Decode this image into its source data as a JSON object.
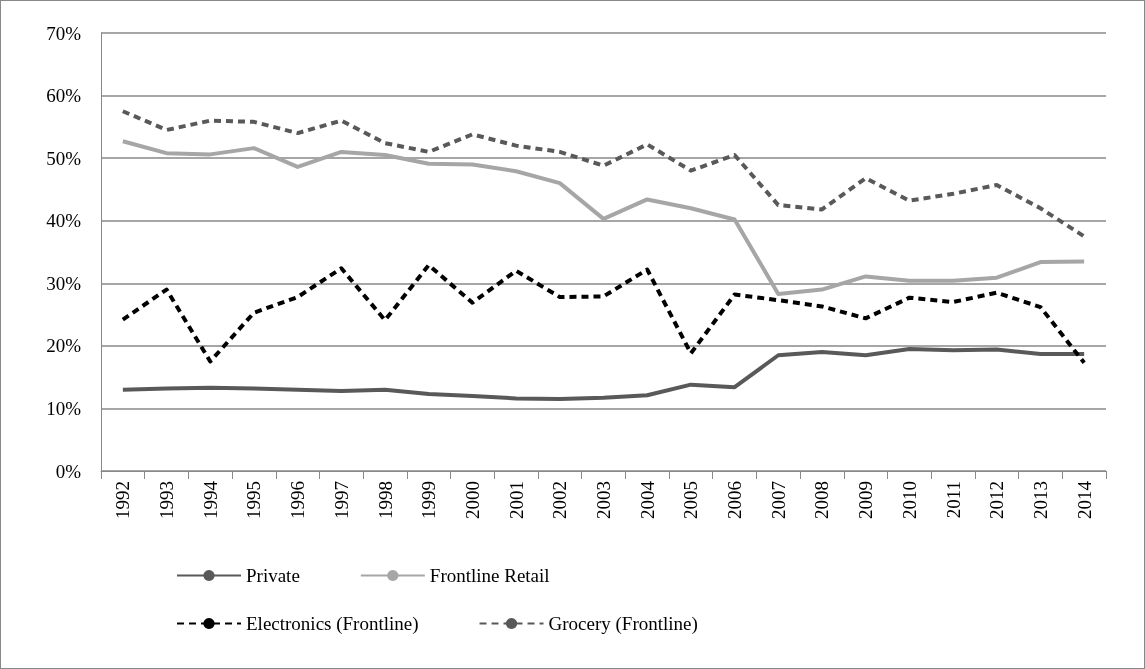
{
  "chart_data": {
    "type": "line",
    "categories": [
      "1992",
      "1993",
      "1994",
      "1995",
      "1996",
      "1997",
      "1998",
      "1999",
      "2000",
      "2001",
      "2002",
      "2003",
      "2004",
      "2005",
      "2006",
      "2007",
      "2008",
      "2009",
      "2010",
      "2011",
      "2012",
      "2013",
      "2014"
    ],
    "series": [
      {
        "name": "Private",
        "color": "#595959",
        "line_style": "solid",
        "values": [
          13,
          13.2,
          13.3,
          13.2,
          13,
          12.8,
          13,
          12.3,
          12,
          11.6,
          11.5,
          11.7,
          12.1,
          13.8,
          13.4,
          18.5,
          19,
          18.5,
          19.5,
          19.3,
          19.4,
          18.7,
          18.7
        ]
      },
      {
        "name": "Frontline Retail",
        "color": "#a6a6a6",
        "line_style": "solid",
        "values": [
          52.7,
          50.8,
          50.6,
          51.6,
          48.6,
          51,
          50.5,
          49.1,
          49,
          47.9,
          46,
          40.3,
          43.4,
          42,
          40.2,
          28.3,
          29,
          31.1,
          30.4,
          30.4,
          30.9,
          33.4,
          33.5
        ]
      },
      {
        "name": "Electronics (Frontline)",
        "color": "#000000",
        "line_style": "dashed",
        "values": [
          24.2,
          29,
          17.5,
          25.3,
          27.8,
          32.4,
          24.1,
          32.9,
          26.9,
          32,
          27.8,
          27.9,
          32.2,
          18.8,
          28.2,
          27.3,
          26.3,
          24.4,
          27.7,
          27,
          28.5,
          26.2,
          17.3
        ]
      },
      {
        "name": "Grocery (Frontline)",
        "color": "#595959",
        "line_style": "dashed",
        "values": [
          57.5,
          54.5,
          56,
          55.8,
          54,
          56,
          52.4,
          51,
          53.8,
          52,
          51,
          48.8,
          52.2,
          48,
          50.5,
          42.5,
          41.8,
          46.8,
          43.2,
          44.3,
          45.7,
          42,
          37.5
        ]
      }
    ],
    "ylim": [
      0,
      70
    ],
    "yticks": [
      {
        "value": 0,
        "label": "0%"
      },
      {
        "value": 10,
        "label": "10%"
      },
      {
        "value": 20,
        "label": "20%"
      },
      {
        "value": 30,
        "label": "30%"
      },
      {
        "value": 40,
        "label": "40%"
      },
      {
        "value": 50,
        "label": "50%"
      },
      {
        "value": 60,
        "label": "60%"
      },
      {
        "value": 70,
        "label": "70%"
      }
    ],
    "grid": "y",
    "legend": "bottom",
    "marker": "none"
  }
}
